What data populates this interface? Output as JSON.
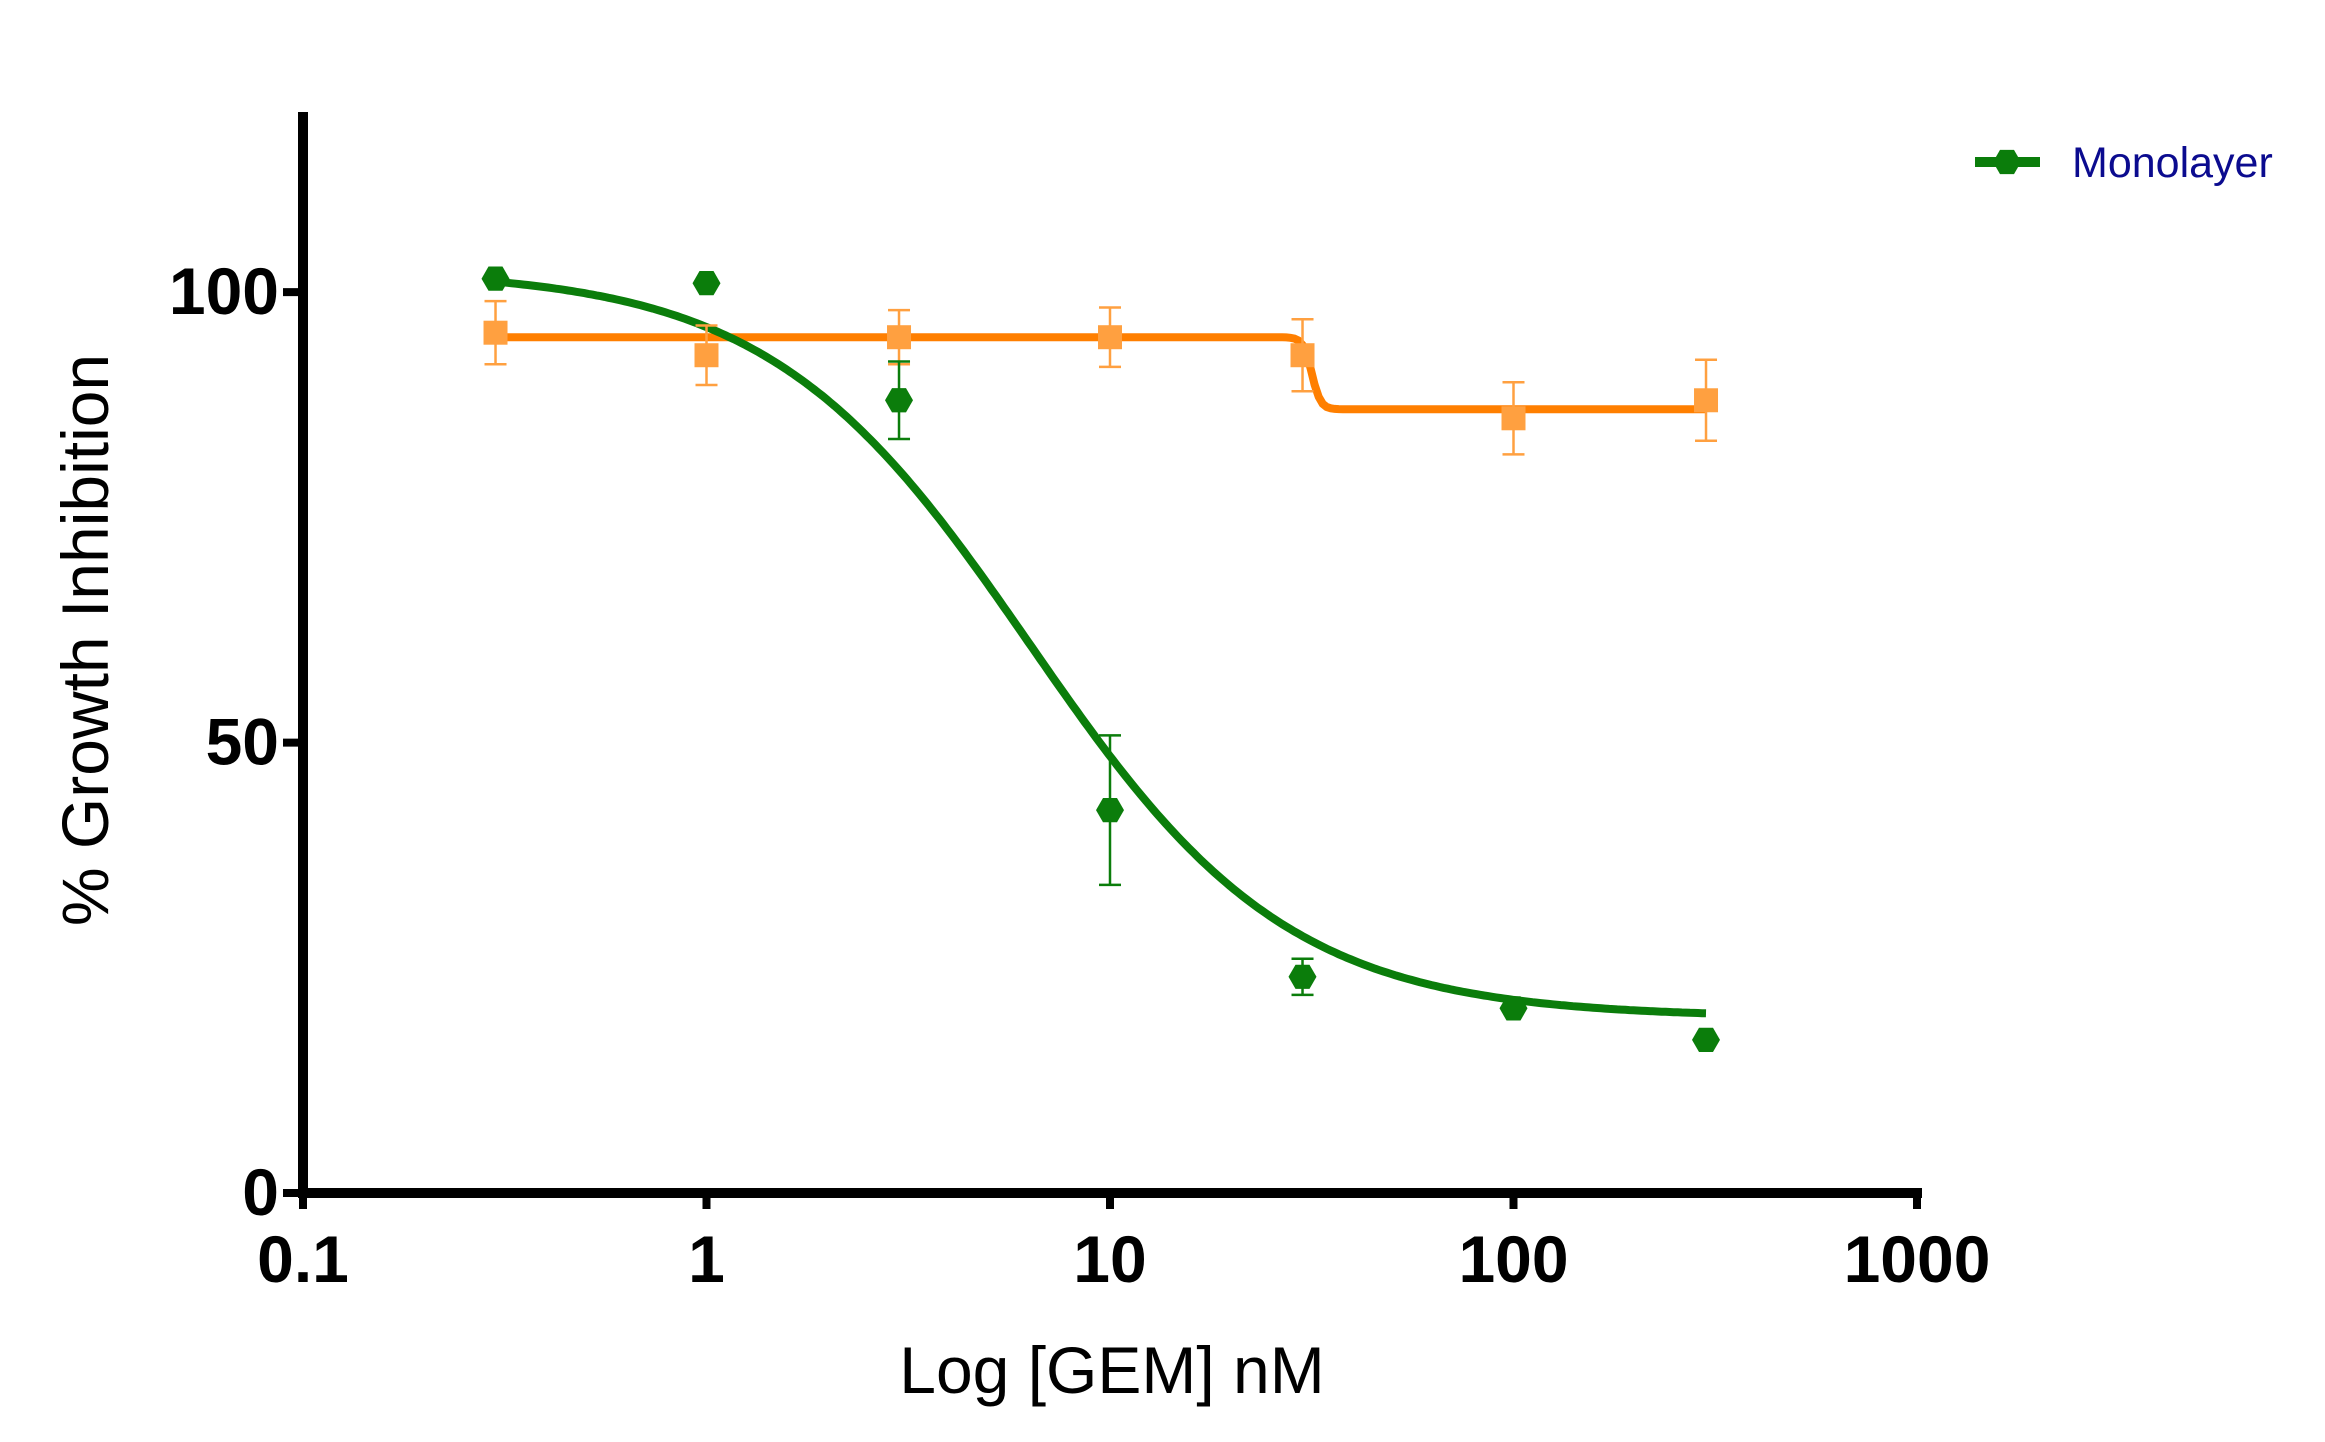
{
  "chart_data": {
    "type": "scatter",
    "title": "",
    "xlabel": "Log [GEM] nM",
    "ylabel": "% Growth Inhibition",
    "xscale": "log",
    "xlim": [
      0.1,
      1000
    ],
    "ylim": [
      0,
      120
    ],
    "x_ticks": [
      0.1,
      1,
      10,
      100,
      1000
    ],
    "x_tick_labels": [
      "0.1",
      "1",
      "10",
      "100",
      "1000"
    ],
    "y_ticks": [
      0,
      50,
      100
    ],
    "y_tick_labels": [
      "0",
      "50",
      "100"
    ],
    "grid": false,
    "legend_position": "top-right",
    "series": [
      {
        "name": "Monolayer",
        "color": "#0b7d0b",
        "marker": "hexagon",
        "x": [
          0.3,
          1,
          3,
          10,
          30,
          100,
          300
        ],
        "y": [
          101.5,
          101.0,
          88.0,
          42.5,
          24.0,
          20.5,
          17.0
        ],
        "error": [
          0,
          0,
          4.3,
          8.3,
          2.0,
          0,
          0
        ],
        "fit": {
          "top": 102.5,
          "bottom": 19.5,
          "log_ic50": 0.8,
          "hill": -1.35
        }
      },
      {
        "color": "#ff7f00",
        "marker_color": "#ffa040",
        "marker": "square",
        "x": [
          0.3,
          1,
          3,
          10,
          30,
          100,
          300
        ],
        "y": [
          95.5,
          93.0,
          95.0,
          95.0,
          93.0,
          86.0,
          88.0
        ],
        "error": [
          3.5,
          3.3,
          3.0,
          3.3,
          4.0,
          4.0,
          4.5
        ],
        "fit": {
          "top": 95.0,
          "bottom": 87.0,
          "log_ic50": 1.5,
          "hill": -40
        }
      }
    ]
  }
}
